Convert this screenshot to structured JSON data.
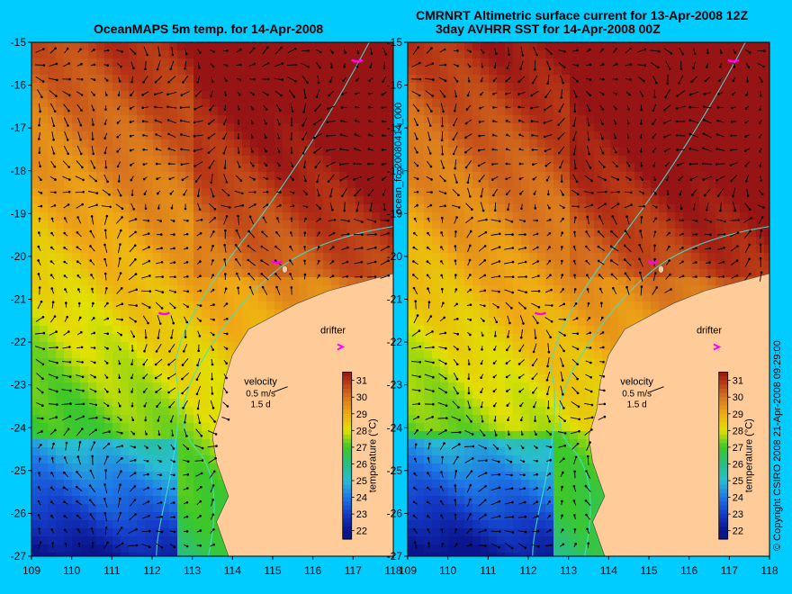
{
  "left_panel": {
    "title": "OceanMAPS 5m temp. for 14-Apr-2008",
    "velocity_label": "velocity",
    "velocity_scale": "0.5 m/s",
    "velocity_days": "1.5 d",
    "drifter_label": "drifter"
  },
  "right_panel": {
    "title_line1": "CMRNRT Altimetric surface current for 13-Apr-2008 12Z",
    "title_line2": "3day AVHRR SST for 14-Apr-2008 00Z",
    "velocity_label": "velocity",
    "velocity_scale": "0.5 m/s",
    "velocity_days": "1.5 d",
    "drifter_label": "drifter"
  },
  "side_labels": {
    "middle": "ocean_fc_20080414_000",
    "right": "© Copyright CSIRO 2008   21-Apr-2008 09:29:00"
  },
  "axes": {
    "lat_ticks": [
      "-15",
      "-16",
      "-17",
      "-18",
      "-19",
      "-20",
      "-21",
      "-22",
      "-23",
      "-24",
      "-25",
      "-26",
      "-27"
    ],
    "lon_ticks": [
      "109",
      "110",
      "111",
      "112",
      "113",
      "114",
      "115",
      "116",
      "117",
      "118"
    ],
    "lat_range": [
      -27,
      -15
    ],
    "lon_range": [
      109,
      118
    ]
  },
  "colorbar": {
    "label": "temperature (°C)",
    "ticks": [
      "31",
      "30",
      "29",
      "28",
      "27",
      "26",
      "25",
      "24",
      "23",
      "22"
    ],
    "range": [
      21.5,
      31.5
    ]
  },
  "colors": {
    "background": "#00ccff",
    "land": "#ffcc99",
    "isobath": "#40e0d0",
    "drifter": "#ff00ff"
  }
}
